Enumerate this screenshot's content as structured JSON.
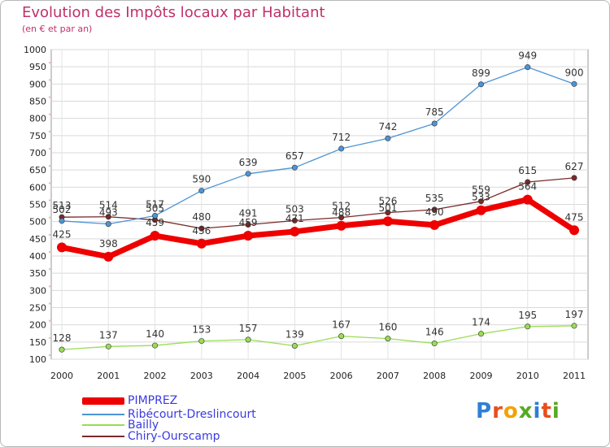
{
  "title": "Evolution des Impôts locaux par Habitant",
  "subtitle": "(en € et par an)",
  "logo_text": "Proxiti",
  "chart_data": {
    "type": "line",
    "x": [
      "2000",
      "2001",
      "2002",
      "2003",
      "2004",
      "2005",
      "2006",
      "2007",
      "2008",
      "2009",
      "2010",
      "2011"
    ],
    "ylim": [
      100,
      1000
    ],
    "yticks": [
      "100",
      "150",
      "200",
      "250",
      "300",
      "350",
      "400",
      "450",
      "500",
      "550",
      "600",
      "650",
      "700",
      "750",
      "800",
      "850",
      "900",
      "950",
      "1000"
    ],
    "grid": true,
    "legend_position": "bottom-left",
    "series": [
      {
        "name": "PIMPREZ",
        "color": "#ee0000",
        "values": [
          425,
          398,
          459,
          436,
          459,
          471,
          488,
          501,
          490,
          533,
          564,
          475
        ]
      },
      {
        "name": "Ribécourt-Dreslincourt",
        "color": "#4d94d6",
        "values": [
          502,
          493,
          517,
          590,
          639,
          657,
          712,
          742,
          785,
          899,
          949,
          900
        ]
      },
      {
        "name": "Bailly",
        "color": "#99dd55",
        "values": [
          128,
          137,
          140,
          153,
          157,
          139,
          167,
          160,
          146,
          174,
          195,
          197
        ]
      },
      {
        "name": "Chiry-Ourscamp",
        "color": "#7a2a2a",
        "values": [
          513,
          514,
          505,
          480,
          491,
          503,
          512,
          526,
          535,
          559,
          615,
          627
        ]
      }
    ]
  }
}
